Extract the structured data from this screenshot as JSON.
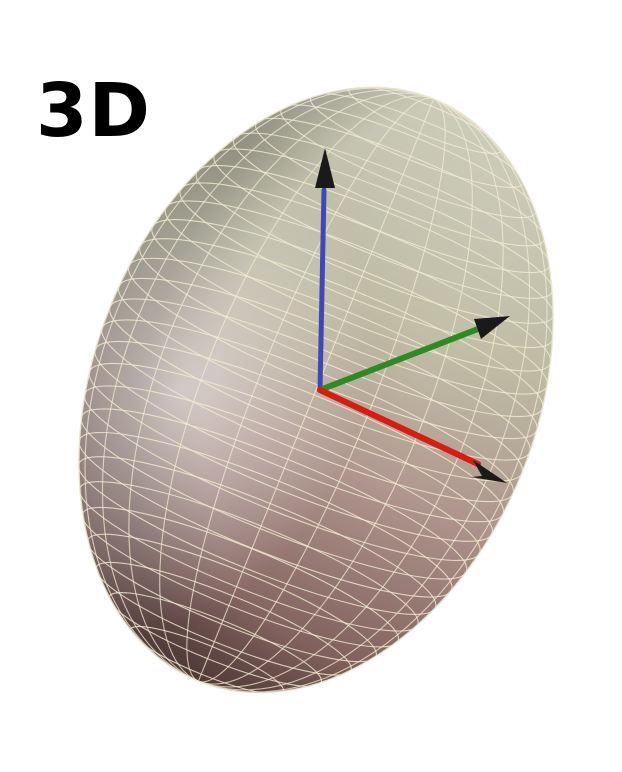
{
  "label": "3D",
  "colors": {
    "axis_x": "#d81c10",
    "axis_y": "#2e8a22",
    "axis_z": "#3c49b6",
    "arrowhead": "#1a1a1a",
    "ellipsoid_top": "#c9c8b2",
    "ellipsoid_bottom": "#7e5e5b",
    "grid_line": "#f2ecd2"
  }
}
